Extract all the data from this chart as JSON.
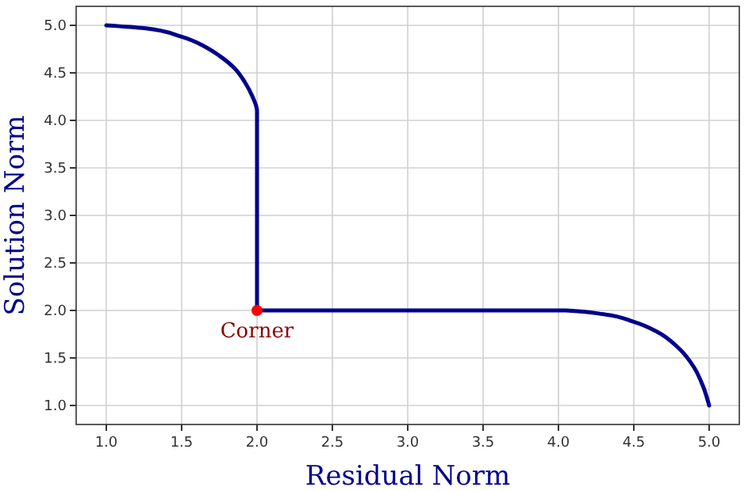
{
  "chart_data": {
    "type": "line",
    "xlabel": "Residual Norm",
    "ylabel": "Solution Norm",
    "xlim": [
      0.8,
      5.2
    ],
    "ylim": [
      0.8,
      5.2
    ],
    "xticks": [
      {
        "value": 1,
        "label": "1.0"
      },
      {
        "value": 1.5,
        "label": "1.5"
      },
      {
        "value": 2,
        "label": "2.0"
      },
      {
        "value": 2.5,
        "label": "2.5"
      },
      {
        "value": 3,
        "label": "3.0"
      },
      {
        "value": 3.5,
        "label": "3.5"
      },
      {
        "value": 4,
        "label": "4.0"
      },
      {
        "value": 4.5,
        "label": "4.5"
      },
      {
        "value": 5,
        "label": "5.0"
      }
    ],
    "yticks": [
      {
        "value": 1,
        "label": "1.0"
      },
      {
        "value": 1.5,
        "label": "1.5"
      },
      {
        "value": 2,
        "label": "2.0"
      },
      {
        "value": 2.5,
        "label": "2.5"
      },
      {
        "value": 3,
        "label": "3.0"
      },
      {
        "value": 3.5,
        "label": "3.5"
      },
      {
        "value": 4,
        "label": "4.0"
      },
      {
        "value": 4.5,
        "label": "4.5"
      },
      {
        "value": 5,
        "label": "5.0"
      }
    ],
    "grid": true,
    "series": [
      {
        "color": "#00008b",
        "x": [
          1.0,
          1.25,
          1.5,
          1.65,
          1.75,
          1.85,
          1.92,
          1.97,
          2.0,
          2.0,
          4.05,
          4.3,
          4.5,
          4.65,
          4.8,
          4.9,
          4.96,
          5.0
        ],
        "values": [
          5.0,
          4.97,
          4.88,
          4.78,
          4.68,
          4.55,
          4.4,
          4.25,
          4.1,
          2.0,
          2.0,
          1.96,
          1.88,
          1.78,
          1.6,
          1.4,
          1.2,
          1.0
        ]
      },
      {
        "type": "scatter",
        "color": "#ff0000",
        "x": [
          2.0
        ],
        "values": [
          2.0
        ]
      }
    ],
    "annotations": [
      {
        "text": "Corner",
        "x": 2.0,
        "y": 2.0
      }
    ]
  }
}
